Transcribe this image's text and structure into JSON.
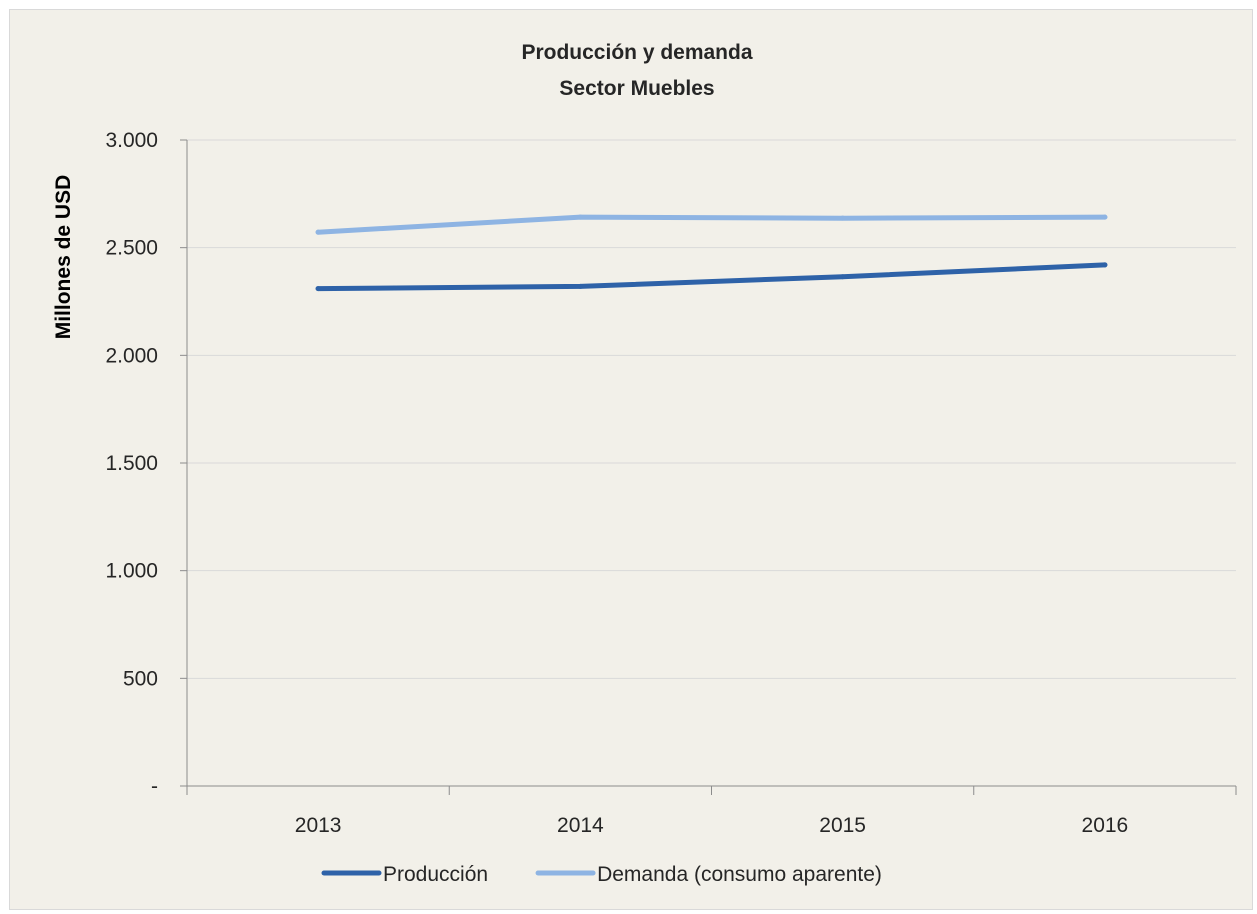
{
  "chart_data": {
    "type": "line",
    "title": "Producción y demanda",
    "subtitle": "Sector Muebles",
    "ylabel": "Millones de USD",
    "xlabel": "",
    "categories": [
      "2013",
      "2014",
      "2015",
      "2016"
    ],
    "ylim": [
      0,
      3000
    ],
    "yticks": [
      0,
      500,
      1000,
      1500,
      2000,
      2500,
      3000
    ],
    "ytick_labels": [
      "-",
      "500",
      "1.000",
      "1.500",
      "2.000",
      "2.500",
      "3.000"
    ],
    "grid": true,
    "legend_position": "bottom",
    "series": [
      {
        "name": "Producción",
        "color": "#2e62a8",
        "values": [
          2310,
          2320,
          2365,
          2420
        ]
      },
      {
        "name": "Demanda (consumo aparente)",
        "color": "#8eb4e3",
        "values": [
          2572,
          2642,
          2637,
          2642
        ]
      }
    ]
  }
}
